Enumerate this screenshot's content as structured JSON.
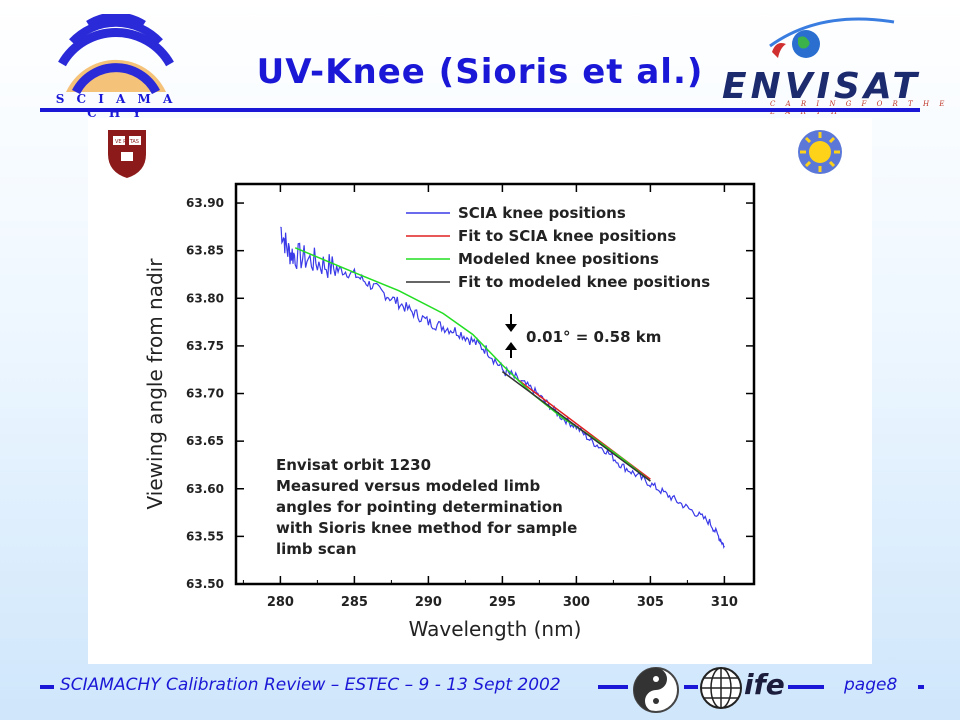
{
  "slide": {
    "title": "UV-Knee (Sioris et al.)",
    "footer_text": "SCIAMACHY Calibration Review – ESTEC – 9 - 13 Sept 2002",
    "page": "page8",
    "accent_color": "#1a18d6"
  },
  "logos": {
    "sciamachy": {
      "text": "S C I A M A C H Y",
      "icon": "sciamachy-waves-icon"
    },
    "envisat": {
      "text": "ENVISAT",
      "tagline": "C A R I N G   F O R   T H E   E A R T H",
      "icon": "earth-globe-icon"
    },
    "harvard": {
      "icon": "harvard-shield-icon",
      "text": "VE RI TAS"
    },
    "sun": {
      "icon": "sun-icon"
    },
    "ife": {
      "text": "ife",
      "icon": "globe-grid-icon"
    }
  },
  "chart_data": {
    "type": "line",
    "xlabel": "Wavelength (nm)",
    "ylabel": "Viewing angle from nadir",
    "xlim": [
      277,
      312
    ],
    "ylim": [
      63.5,
      63.92
    ],
    "x_ticks": [
      280,
      285,
      290,
      295,
      300,
      305,
      310
    ],
    "y_ticks": [
      63.5,
      63.55,
      63.6,
      63.65,
      63.7,
      63.75,
      63.8,
      63.85,
      63.9
    ],
    "legend_position": "top-right",
    "series": [
      {
        "name": "SCIA knee positions",
        "color": "#3a3ae8",
        "noisy": true,
        "x": [
          280,
          280.5,
          281,
          282,
          283,
          284,
          285,
          286,
          287,
          288,
          289,
          290,
          291,
          292,
          293,
          294,
          295,
          296,
          297,
          298,
          299,
          300,
          301,
          302,
          303,
          304,
          305,
          306,
          307,
          308,
          309,
          309.6,
          310
        ],
        "y": [
          63.875,
          63.85,
          63.845,
          63.84,
          63.835,
          63.83,
          63.825,
          63.815,
          63.805,
          63.795,
          63.785,
          63.775,
          63.77,
          63.765,
          63.755,
          63.745,
          63.725,
          63.715,
          63.705,
          63.69,
          63.675,
          63.665,
          63.65,
          63.64,
          63.625,
          63.615,
          63.605,
          63.595,
          63.585,
          63.575,
          63.565,
          63.55,
          63.54
        ]
      },
      {
        "name": "Fit to SCIA knee positions",
        "color": "#e02020",
        "x": [
          296,
          305
        ],
        "y": [
          63.715,
          63.61
        ]
      },
      {
        "name": "Modeled knee positions",
        "color": "#22dd22",
        "x": [
          281,
          285,
          288,
          291,
          293,
          295,
          297,
          299,
          301,
          303,
          305
        ],
        "y": [
          63.853,
          63.827,
          63.808,
          63.784,
          63.762,
          63.73,
          63.7,
          63.675,
          63.655,
          63.633,
          63.608
        ]
      },
      {
        "name": "Fit to modeled knee positions",
        "color": "#333333",
        "x": [
          295,
          305
        ],
        "y": [
          63.723,
          63.608
        ]
      }
    ],
    "annotations": [
      {
        "text": "0.01° = 0.58 km",
        "position": "center-right"
      },
      {
        "lines": [
          "Envisat orbit 1230",
          "Measured versus modeled limb",
          "angles for pointing determination",
          "with Sioris knee method for sample",
          "limb scan"
        ],
        "position": "bottom-left"
      }
    ]
  }
}
